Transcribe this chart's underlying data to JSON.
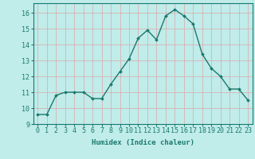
{
  "x": [
    0,
    1,
    2,
    3,
    4,
    5,
    6,
    7,
    8,
    9,
    10,
    11,
    12,
    13,
    14,
    15,
    16,
    17,
    18,
    19,
    20,
    21,
    22,
    23
  ],
  "y": [
    9.6,
    9.6,
    10.8,
    11.0,
    11.0,
    11.0,
    10.6,
    10.6,
    11.5,
    12.3,
    13.1,
    14.4,
    14.9,
    14.3,
    15.8,
    16.2,
    15.8,
    15.3,
    13.4,
    12.5,
    12.0,
    11.2,
    11.2,
    10.5
  ],
  "line_color": "#1a7a6e",
  "marker": "D",
  "markersize": 2.0,
  "linewidth": 1.0,
  "xlabel": "Humidex (Indice chaleur)",
  "xlim": [
    -0.5,
    23.5
  ],
  "ylim": [
    9,
    16.6
  ],
  "yticks": [
    9,
    10,
    11,
    12,
    13,
    14,
    15,
    16
  ],
  "xticks": [
    0,
    1,
    2,
    3,
    4,
    5,
    6,
    7,
    8,
    9,
    10,
    11,
    12,
    13,
    14,
    15,
    16,
    17,
    18,
    19,
    20,
    21,
    22,
    23
  ],
  "bg_color": "#c0ecea",
  "grid_color": "#dba8a8",
  "tick_color": "#1a7a6e",
  "label_color": "#1a7a6e",
  "xlabel_fontsize": 6.5,
  "tick_fontsize": 6.0
}
